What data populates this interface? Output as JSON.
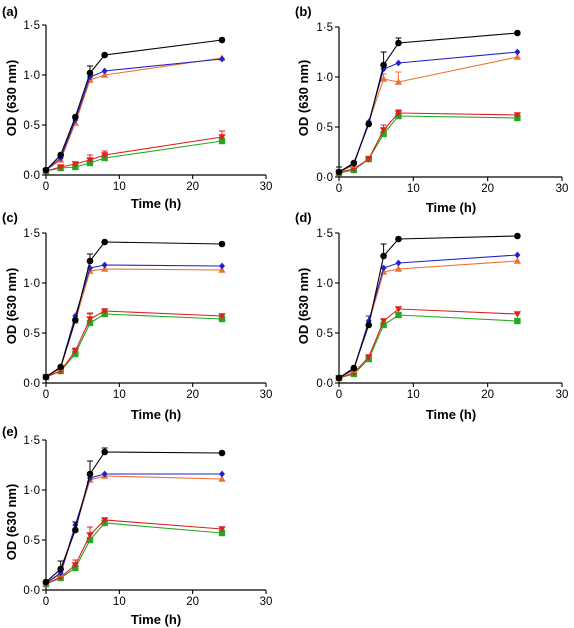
{
  "chart_data": [
    {
      "type": "line",
      "panel_label": "(a)",
      "xlabel": "Time (h)",
      "ylabel": "OD (630 nm)",
      "xlim": [
        0,
        30
      ],
      "ylim": [
        0,
        1.5
      ],
      "xticks": [
        "0",
        "10",
        "20",
        "30"
      ],
      "yticks": [
        "0·0",
        "0·5",
        "1·0",
        "1·5"
      ],
      "x": [
        0,
        2,
        4,
        6,
        8,
        24
      ],
      "series": [
        {
          "color": "#000000",
          "marker": "circle",
          "values": [
            0.05,
            0.2,
            0.58,
            1.02,
            1.2,
            1.35
          ],
          "errors": [
            0,
            0,
            0,
            0.07,
            0,
            0
          ]
        },
        {
          "color": "#2222cc",
          "marker": "diamond",
          "values": [
            0.05,
            0.17,
            0.55,
            0.98,
            1.04,
            1.16
          ],
          "errors": [
            0,
            0,
            0,
            0,
            0,
            0
          ]
        },
        {
          "color": "#f07030",
          "marker": "triangle-up",
          "values": [
            0.05,
            0.15,
            0.52,
            0.95,
            1.0,
            1.17
          ],
          "errors": [
            0,
            0,
            0,
            0,
            0,
            0
          ]
        },
        {
          "color": "#dd2020",
          "marker": "triangle-down",
          "values": [
            0.04,
            0.08,
            0.11,
            0.15,
            0.2,
            0.38
          ],
          "errors": [
            0,
            0,
            0,
            0.05,
            0.04,
            0.06
          ]
        },
        {
          "color": "#22aa22",
          "marker": "square",
          "values": [
            0.04,
            0.07,
            0.08,
            0.12,
            0.17,
            0.34
          ],
          "errors": [
            0,
            0,
            0,
            0,
            0,
            0
          ]
        }
      ]
    },
    {
      "type": "line",
      "panel_label": "(b)",
      "xlabel": "Time (h)",
      "ylabel": "OD (630 nm)",
      "xlim": [
        0,
        30
      ],
      "ylim": [
        0,
        1.5
      ],
      "xticks": [
        "0",
        "10",
        "20",
        "30"
      ],
      "yticks": [
        "0·0",
        "0·5",
        "1·0",
        "1·5"
      ],
      "x": [
        0,
        2,
        4,
        6,
        8,
        24
      ],
      "series": [
        {
          "color": "#000000",
          "marker": "circle",
          "values": [
            0.05,
            0.14,
            0.53,
            1.12,
            1.34,
            1.44
          ],
          "errors": [
            0.05,
            0,
            0,
            0.13,
            0.05,
            0
          ]
        },
        {
          "color": "#2222cc",
          "marker": "diamond",
          "values": [
            0.05,
            0.13,
            0.55,
            1.08,
            1.14,
            1.25
          ],
          "errors": [
            0,
            0,
            0,
            0,
            0,
            0
          ]
        },
        {
          "color": "#f07030",
          "marker": "triangle-up",
          "values": [
            0.05,
            0.12,
            0.55,
            0.98,
            0.95,
            1.2
          ],
          "errors": [
            0,
            0,
            0,
            0.05,
            0.1,
            0
          ]
        },
        {
          "color": "#dd2020",
          "marker": "triangle-down",
          "values": [
            0.05,
            0.08,
            0.18,
            0.47,
            0.64,
            0.62
          ],
          "errors": [
            0,
            0,
            0,
            0.05,
            0.03,
            0
          ]
        },
        {
          "color": "#22aa22",
          "marker": "square",
          "values": [
            0.04,
            0.07,
            0.18,
            0.43,
            0.61,
            0.59
          ],
          "errors": [
            0,
            0,
            0,
            0.05,
            0,
            0
          ]
        }
      ]
    },
    {
      "type": "line",
      "panel_label": "(c)",
      "xlabel": "Time (h)",
      "ylabel": "OD (630 nm)",
      "xlim": [
        0,
        30
      ],
      "ylim": [
        0,
        1.5
      ],
      "xticks": [
        "0",
        "10",
        "20",
        "30"
      ],
      "yticks": [
        "0·0",
        "0·5",
        "1·0",
        "1·5"
      ],
      "x": [
        0,
        2,
        4,
        6,
        8,
        24
      ],
      "series": [
        {
          "color": "#000000",
          "marker": "circle",
          "values": [
            0.06,
            0.16,
            0.63,
            1.22,
            1.41,
            1.39
          ],
          "errors": [
            0,
            0,
            0,
            0.07,
            0,
            0
          ]
        },
        {
          "color": "#2222cc",
          "marker": "diamond",
          "values": [
            0.06,
            0.16,
            0.67,
            1.15,
            1.18,
            1.17
          ],
          "errors": [
            0,
            0,
            0,
            0,
            0,
            0
          ]
        },
        {
          "color": "#f07030",
          "marker": "triangle-up",
          "values": [
            0.06,
            0.15,
            0.62,
            1.12,
            1.14,
            1.13
          ],
          "errors": [
            0,
            0,
            0,
            0,
            0,
            0
          ]
        },
        {
          "color": "#dd2020",
          "marker": "triangle-down",
          "values": [
            0.06,
            0.12,
            0.32,
            0.64,
            0.72,
            0.67
          ],
          "errors": [
            0,
            0,
            0,
            0.06,
            0,
            0
          ]
        },
        {
          "color": "#22aa22",
          "marker": "square",
          "values": [
            0.06,
            0.12,
            0.29,
            0.6,
            0.69,
            0.64
          ],
          "errors": [
            0,
            0,
            0.06,
            0.09,
            0,
            0
          ]
        }
      ]
    },
    {
      "type": "line",
      "panel_label": "(d)",
      "xlabel": "Time (h)",
      "ylabel": "OD (630 nm)",
      "xlim": [
        0,
        30
      ],
      "ylim": [
        0,
        1.5
      ],
      "xticks": [
        "0",
        "10",
        "20",
        "30"
      ],
      "yticks": [
        "0·0",
        "0·5",
        "1·0",
        "1·5"
      ],
      "x": [
        0,
        2,
        4,
        6,
        8,
        24
      ],
      "series": [
        {
          "color": "#000000",
          "marker": "circle",
          "values": [
            0.05,
            0.15,
            0.58,
            1.27,
            1.44,
            1.47
          ],
          "errors": [
            0,
            0,
            0,
            0.12,
            0,
            0
          ]
        },
        {
          "color": "#2222cc",
          "marker": "diamond",
          "values": [
            0.05,
            0.14,
            0.62,
            1.15,
            1.2,
            1.28
          ],
          "errors": [
            0,
            0,
            0.05,
            0,
            0,
            0
          ]
        },
        {
          "color": "#f07030",
          "marker": "triangle-up",
          "values": [
            0.05,
            0.13,
            0.6,
            1.11,
            1.14,
            1.22
          ],
          "errors": [
            0,
            0,
            0,
            0,
            0,
            0
          ]
        },
        {
          "color": "#dd2020",
          "marker": "triangle-down",
          "values": [
            0.05,
            0.1,
            0.26,
            0.62,
            0.74,
            0.69
          ],
          "errors": [
            0,
            0,
            0,
            0,
            0,
            0
          ]
        },
        {
          "color": "#22aa22",
          "marker": "square",
          "values": [
            0.05,
            0.09,
            0.24,
            0.58,
            0.68,
            0.62
          ],
          "errors": [
            0,
            0,
            0,
            0,
            0,
            0
          ]
        }
      ]
    },
    {
      "type": "line",
      "panel_label": "(e)",
      "xlabel": "Time (h)",
      "ylabel": "OD (630 nm)",
      "xlim": [
        0,
        30
      ],
      "ylim": [
        0,
        1.5
      ],
      "xticks": [
        "0",
        "10",
        "20",
        "30"
      ],
      "yticks": [
        "0·0",
        "0·5",
        "1·0",
        "1·5"
      ],
      "x": [
        0,
        2,
        4,
        6,
        8,
        24
      ],
      "series": [
        {
          "color": "#000000",
          "marker": "circle",
          "values": [
            0.08,
            0.21,
            0.6,
            1.16,
            1.38,
            1.37
          ],
          "errors": [
            0,
            0.08,
            0.08,
            0.13,
            0.04,
            0
          ]
        },
        {
          "color": "#2222cc",
          "marker": "diamond",
          "values": [
            0.07,
            0.17,
            0.65,
            1.12,
            1.16,
            1.16
          ],
          "errors": [
            0,
            0,
            0,
            0,
            0,
            0
          ]
        },
        {
          "color": "#f07030",
          "marker": "triangle-up",
          "values": [
            0.07,
            0.16,
            0.62,
            1.1,
            1.14,
            1.11
          ],
          "errors": [
            0,
            0,
            0,
            0,
            0,
            0
          ]
        },
        {
          "color": "#dd2020",
          "marker": "triangle-down",
          "values": [
            0.06,
            0.13,
            0.25,
            0.55,
            0.7,
            0.61
          ],
          "errors": [
            0,
            0,
            0.05,
            0.08,
            0,
            0
          ]
        },
        {
          "color": "#22aa22",
          "marker": "square",
          "values": [
            0.06,
            0.12,
            0.22,
            0.5,
            0.67,
            0.57
          ],
          "errors": [
            0,
            0,
            0,
            0,
            0,
            0
          ]
        }
      ]
    }
  ]
}
